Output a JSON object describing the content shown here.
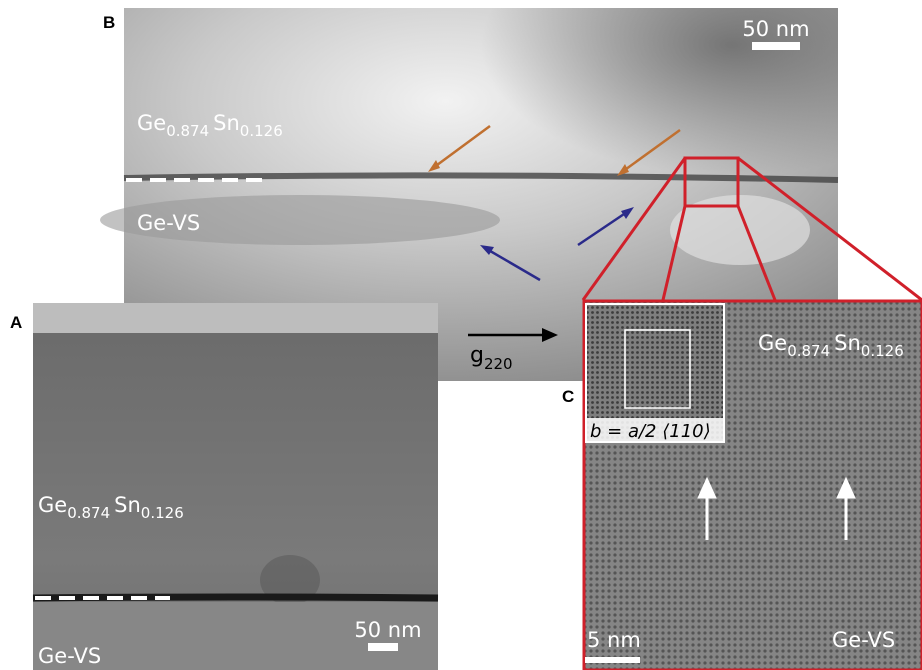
{
  "panels": {
    "B": {
      "label": "B",
      "scale_bar": "50 nm",
      "layer_top": {
        "el1": "Ge",
        "sub1": "0.874",
        "el2": "Sn",
        "sub2": "0.126"
      },
      "layer_bottom": "Ge-VS",
      "vector": {
        "base": "g",
        "sub": "220"
      }
    },
    "A": {
      "label": "A",
      "scale_bar": "50 nm",
      "layer_top": {
        "el1": "Ge",
        "sub1": "0.874",
        "el2": "Sn",
        "sub2": "0.126"
      },
      "layer_bottom": "Ge-VS"
    },
    "C": {
      "label": "C",
      "scale_bar": "5 nm",
      "layer_top": {
        "el1": "Ge",
        "sub1": "0.874",
        "el2": "Sn",
        "sub2": "0.126"
      },
      "layer_bottom": "Ge-VS",
      "burgers": "b = a/2 ⟨110⟩"
    }
  }
}
